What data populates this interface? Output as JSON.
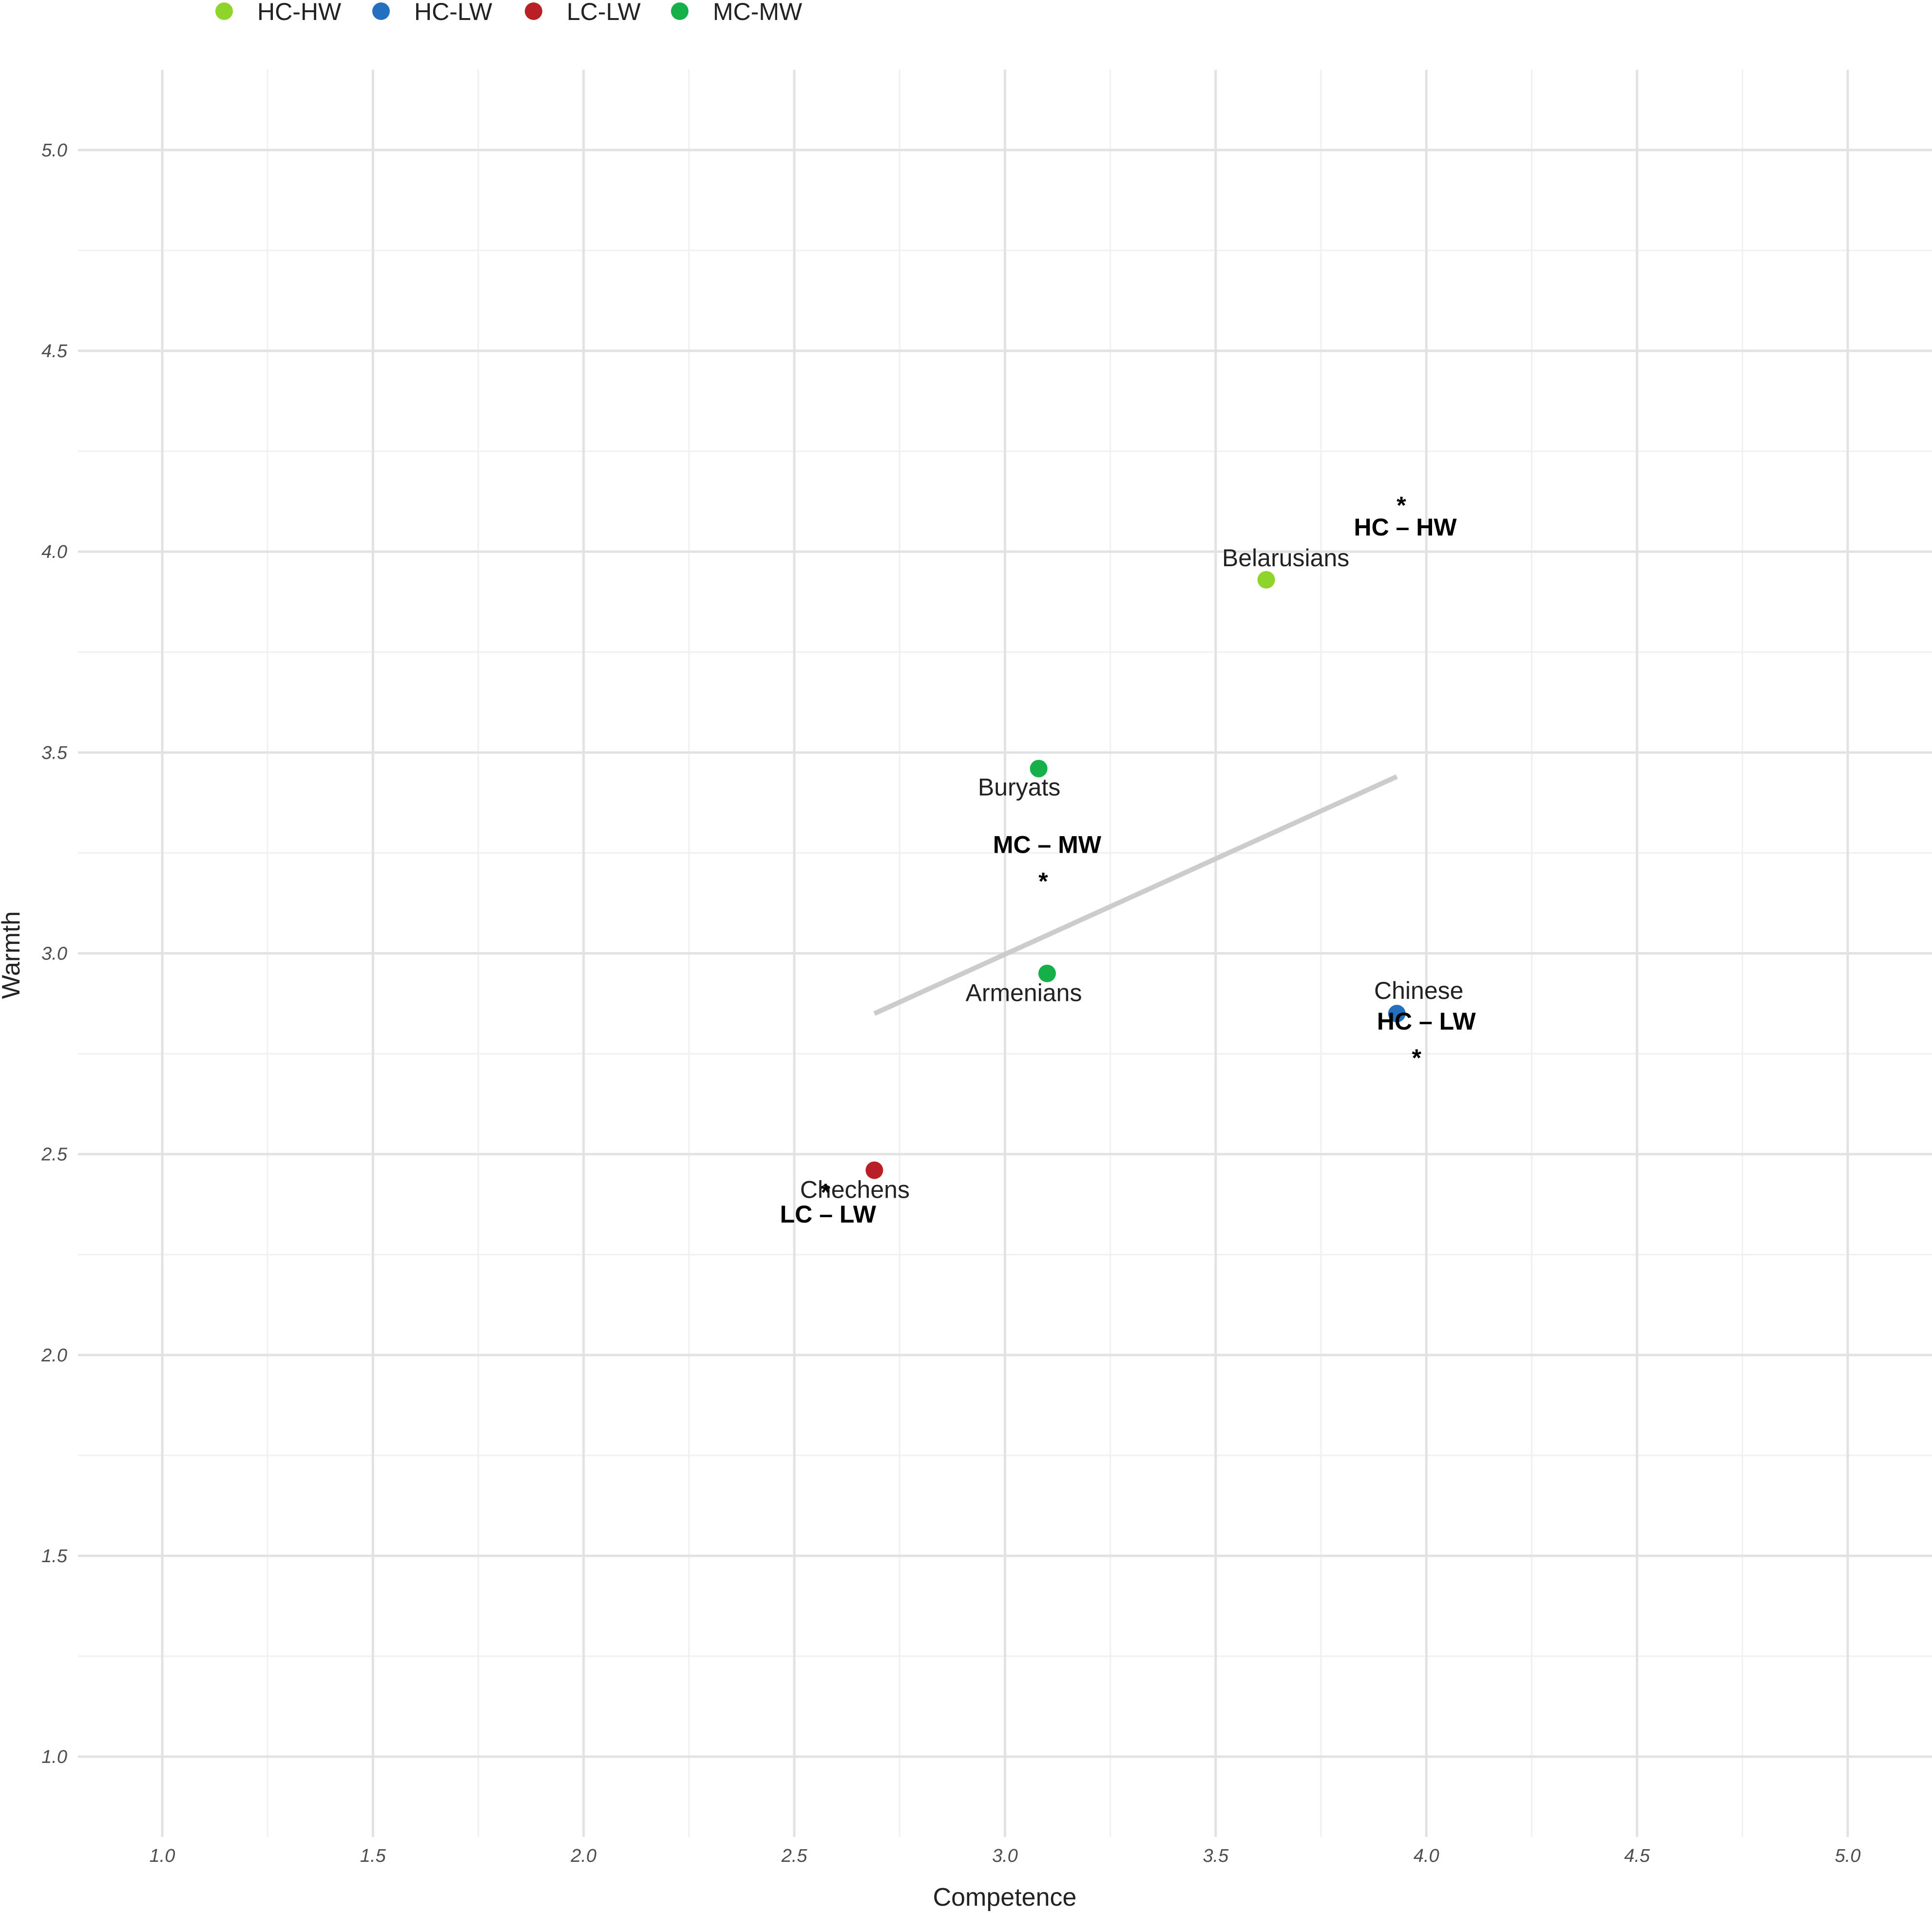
{
  "chart_data": {
    "type": "scatter",
    "xlabel": "Competence",
    "ylabel": "Warmth",
    "xlim": [
      0.8,
      5.2
    ],
    "ylim": [
      0.8,
      5.2
    ],
    "x_ticks": [
      "1.0",
      "1.5",
      "2.0",
      "2.5",
      "3.0",
      "3.5",
      "4.0",
      "4.5",
      "5.0"
    ],
    "y_ticks": [
      "1.0",
      "1.5",
      "2.0",
      "2.5",
      "3.0",
      "3.5",
      "4.0",
      "4.5",
      "5.0"
    ],
    "grid": true,
    "legend_position": "top-left",
    "legend": [
      {
        "name": "HC-HW",
        "color": "#8fd42a"
      },
      {
        "name": "HC-LW",
        "color": "#2470c0"
      },
      {
        "name": "LC-LW",
        "color": "#b82025"
      },
      {
        "name": "MC-MW",
        "color": "#16b04a"
      }
    ],
    "points": [
      {
        "label": "Belarusians",
        "group": "HC-HW",
        "x": 3.62,
        "y": 3.93
      },
      {
        "label": "Buryats",
        "group": "MC-MW",
        "x": 3.08,
        "y": 3.46
      },
      {
        "label": "Armenians",
        "group": "MC-MW",
        "x": 3.1,
        "y": 2.95
      },
      {
        "label": "Chinese",
        "group": "HC-LW",
        "x": 3.93,
        "y": 2.85
      },
      {
        "label": "Chechens",
        "group": "LC-LW",
        "x": 2.69,
        "y": 2.46
      }
    ],
    "trend_line": {
      "color": "#cccccc",
      "x": [
        2.69,
        3.93
      ],
      "y": [
        2.85,
        3.44
      ]
    },
    "cluster_labels": [
      {
        "text": "HC – HW",
        "star": "*",
        "x": 3.95,
        "y": 4.04
      },
      {
        "text": "MC – MW",
        "star": "*",
        "x": 3.1,
        "y": 3.25
      },
      {
        "text": "HC – LW",
        "star": "*",
        "x": 4.0,
        "y": 2.81
      },
      {
        "text": "LC – LW",
        "star": "*",
        "x": 2.58,
        "y": 2.33
      }
    ]
  }
}
